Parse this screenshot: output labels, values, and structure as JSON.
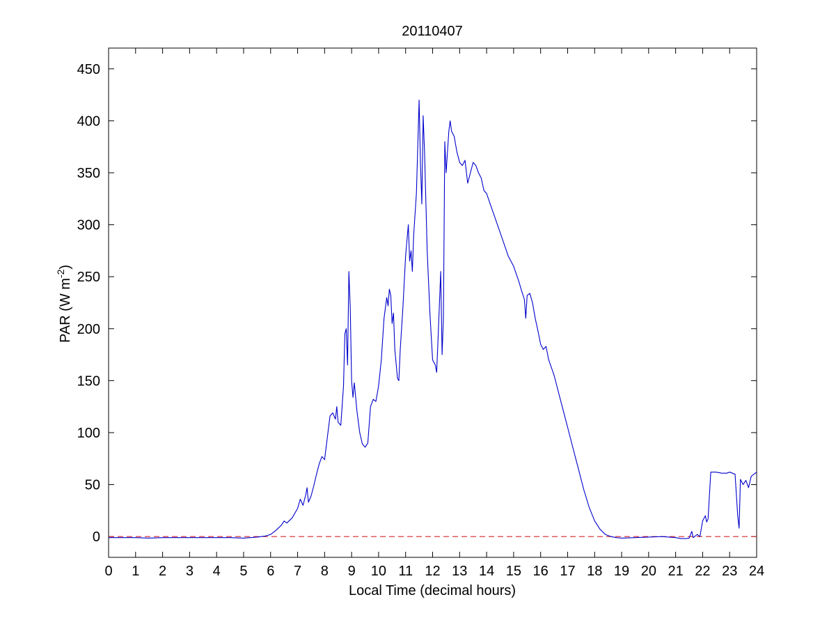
{
  "chart_data": {
    "type": "line",
    "title": "20110407",
    "xlabel": "Local Time (decimal hours)",
    "ylabel": "PAR (W m",
    "ylabel_sup": "-2",
    "ylabel_end": ")",
    "xlim": [
      0,
      24
    ],
    "ylim": [
      -20,
      470
    ],
    "xticks": [
      0,
      1,
      2,
      3,
      4,
      5,
      6,
      7,
      8,
      9,
      10,
      11,
      12,
      13,
      14,
      15,
      16,
      17,
      18,
      19,
      20,
      21,
      22,
      23,
      24
    ],
    "yticks": [
      0,
      50,
      100,
      150,
      200,
      250,
      300,
      350,
      400,
      450
    ],
    "grid": false,
    "reference_line": {
      "y": 0,
      "style": "dashed",
      "color": "#d62728"
    },
    "series": [
      {
        "color": "#0000cc",
        "points": [
          [
            0.0,
            -1
          ],
          [
            0.5,
            -1
          ],
          [
            1.0,
            -1
          ],
          [
            1.5,
            -1.5
          ],
          [
            2.0,
            -1
          ],
          [
            2.5,
            -1
          ],
          [
            3.0,
            -1
          ],
          [
            3.5,
            -1
          ],
          [
            4.0,
            -1
          ],
          [
            4.5,
            -1
          ],
          [
            5.0,
            -1.5
          ],
          [
            5.5,
            -0.5
          ],
          [
            5.8,
            0.5
          ],
          [
            6.0,
            2
          ],
          [
            6.2,
            6
          ],
          [
            6.4,
            11
          ],
          [
            6.5,
            15
          ],
          [
            6.6,
            13
          ],
          [
            6.8,
            18
          ],
          [
            7.0,
            27
          ],
          [
            7.1,
            36
          ],
          [
            7.2,
            30
          ],
          [
            7.3,
            40
          ],
          [
            7.35,
            47
          ],
          [
            7.4,
            33
          ],
          [
            7.5,
            39
          ],
          [
            7.6,
            49
          ],
          [
            7.7,
            60
          ],
          [
            7.8,
            70
          ],
          [
            7.9,
            77
          ],
          [
            8.0,
            74
          ],
          [
            8.1,
            95
          ],
          [
            8.2,
            116
          ],
          [
            8.3,
            119
          ],
          [
            8.4,
            113
          ],
          [
            8.45,
            125
          ],
          [
            8.5,
            110
          ],
          [
            8.6,
            107
          ],
          [
            8.7,
            145
          ],
          [
            8.75,
            195
          ],
          [
            8.8,
            200
          ],
          [
            8.85,
            165
          ],
          [
            8.9,
            255
          ],
          [
            8.95,
            220
          ],
          [
            9.0,
            150
          ],
          [
            9.05,
            134
          ],
          [
            9.1,
            148
          ],
          [
            9.2,
            120
          ],
          [
            9.3,
            100
          ],
          [
            9.4,
            89
          ],
          [
            9.5,
            86
          ],
          [
            9.6,
            90
          ],
          [
            9.7,
            125
          ],
          [
            9.8,
            132
          ],
          [
            9.9,
            130
          ],
          [
            10.0,
            145
          ],
          [
            10.1,
            170
          ],
          [
            10.2,
            210
          ],
          [
            10.3,
            230
          ],
          [
            10.35,
            222
          ],
          [
            10.4,
            238
          ],
          [
            10.45,
            232
          ],
          [
            10.5,
            205
          ],
          [
            10.55,
            215
          ],
          [
            10.6,
            180
          ],
          [
            10.7,
            152
          ],
          [
            10.75,
            150
          ],
          [
            10.8,
            180
          ],
          [
            10.9,
            220
          ],
          [
            11.0,
            270
          ],
          [
            11.1,
            300
          ],
          [
            11.15,
            265
          ],
          [
            11.2,
            275
          ],
          [
            11.25,
            255
          ],
          [
            11.3,
            290
          ],
          [
            11.4,
            330
          ],
          [
            11.5,
            420
          ],
          [
            11.55,
            360
          ],
          [
            11.6,
            320
          ],
          [
            11.65,
            405
          ],
          [
            11.7,
            370
          ],
          [
            11.8,
            275
          ],
          [
            11.9,
            215
          ],
          [
            12.0,
            170
          ],
          [
            12.1,
            165
          ],
          [
            12.15,
            158
          ],
          [
            12.2,
            190
          ],
          [
            12.3,
            255
          ],
          [
            12.35,
            175
          ],
          [
            12.4,
            210
          ],
          [
            12.45,
            380
          ],
          [
            12.5,
            350
          ],
          [
            12.6,
            390
          ],
          [
            12.65,
            400
          ],
          [
            12.7,
            390
          ],
          [
            12.8,
            385
          ],
          [
            12.9,
            370
          ],
          [
            13.0,
            360
          ],
          [
            13.1,
            357
          ],
          [
            13.2,
            362
          ],
          [
            13.3,
            340
          ],
          [
            13.4,
            350
          ],
          [
            13.5,
            360
          ],
          [
            13.6,
            357
          ],
          [
            13.7,
            350
          ],
          [
            13.8,
            345
          ],
          [
            13.9,
            333
          ],
          [
            14.0,
            330
          ],
          [
            14.2,
            315
          ],
          [
            14.4,
            300
          ],
          [
            14.6,
            285
          ],
          [
            14.8,
            270
          ],
          [
            15.0,
            260
          ],
          [
            15.2,
            245
          ],
          [
            15.3,
            236
          ],
          [
            15.4,
            228
          ],
          [
            15.45,
            210
          ],
          [
            15.5,
            232
          ],
          [
            15.6,
            234
          ],
          [
            15.7,
            225
          ],
          [
            15.8,
            210
          ],
          [
            15.9,
            198
          ],
          [
            16.0,
            185
          ],
          [
            16.1,
            180
          ],
          [
            16.2,
            183
          ],
          [
            16.3,
            170
          ],
          [
            16.5,
            155
          ],
          [
            16.6,
            145
          ],
          [
            16.8,
            125
          ],
          [
            17.0,
            105
          ],
          [
            17.2,
            85
          ],
          [
            17.4,
            65
          ],
          [
            17.6,
            45
          ],
          [
            17.8,
            28
          ],
          [
            18.0,
            15
          ],
          [
            18.2,
            7
          ],
          [
            18.4,
            2
          ],
          [
            18.6,
            0
          ],
          [
            18.8,
            -1
          ],
          [
            19.0,
            -1.5
          ],
          [
            19.5,
            -1
          ],
          [
            20.0,
            -0.5
          ],
          [
            20.5,
            0
          ],
          [
            21.0,
            -1
          ],
          [
            21.2,
            -2
          ],
          [
            21.4,
            -2
          ],
          [
            21.5,
            -1.5
          ],
          [
            21.6,
            5
          ],
          [
            21.65,
            -1
          ],
          [
            21.8,
            2
          ],
          [
            21.9,
            0
          ],
          [
            22.0,
            15
          ],
          [
            22.1,
            20
          ],
          [
            22.15,
            14
          ],
          [
            22.2,
            17
          ],
          [
            22.3,
            62
          ],
          [
            22.5,
            62
          ],
          [
            22.7,
            61
          ],
          [
            22.9,
            61
          ],
          [
            23.0,
            62
          ],
          [
            23.1,
            61
          ],
          [
            23.2,
            60
          ],
          [
            23.25,
            40
          ],
          [
            23.3,
            20
          ],
          [
            23.35,
            8
          ],
          [
            23.4,
            55
          ],
          [
            23.5,
            50
          ],
          [
            23.6,
            54
          ],
          [
            23.7,
            47
          ],
          [
            23.8,
            58
          ],
          [
            23.9,
            60
          ],
          [
            24.0,
            62
          ]
        ]
      }
    ]
  }
}
